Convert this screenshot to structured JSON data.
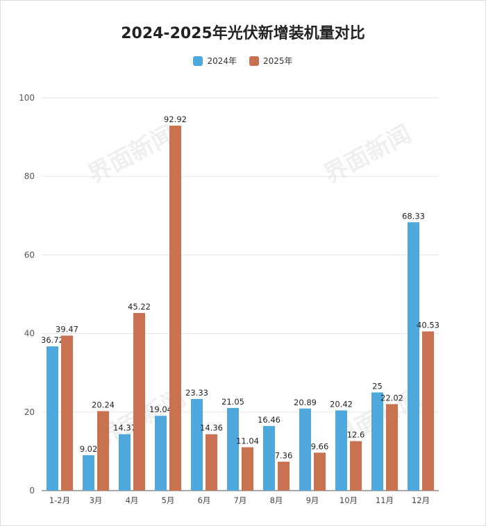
{
  "chart_data": {
    "type": "bar",
    "title": "2024-2025年光伏新增装机量对比",
    "categories": [
      "1-2月",
      "3月",
      "4月",
      "5月",
      "6月",
      "7月",
      "8月",
      "9月",
      "10月",
      "11月",
      "12月"
    ],
    "series": [
      {
        "name": "2024年",
        "color": "#4FA8DC",
        "values": [
          36.72,
          9.02,
          14.37,
          19.04,
          23.33,
          21.05,
          16.46,
          20.89,
          20.42,
          25,
          68.33
        ]
      },
      {
        "name": "2025年",
        "color": "#C87252",
        "values": [
          39.47,
          20.24,
          45.22,
          92.92,
          14.36,
          11.04,
          7.36,
          9.66,
          12.6,
          22.02,
          40.53
        ]
      }
    ],
    "ylim": [
      0,
      100
    ],
    "yticks": [
      0,
      20,
      40,
      60,
      80,
      100
    ],
    "xlabel": "",
    "ylabel": "",
    "grid": true,
    "legend_position": "top-center"
  },
  "watermark": {
    "text": "界面新闻"
  }
}
